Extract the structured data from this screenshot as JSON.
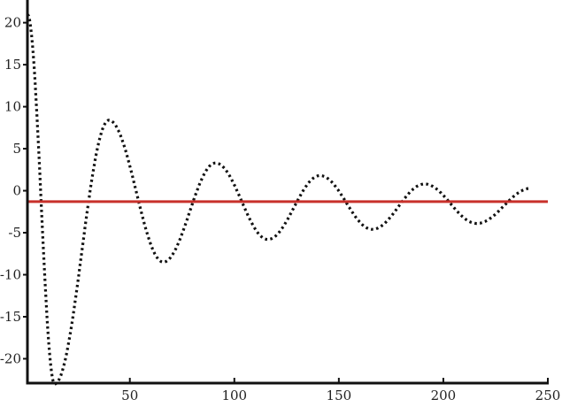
{
  "chart_data": {
    "type": "line",
    "title": "",
    "xlabel": "",
    "ylabel": "",
    "xlim": [
      1,
      250
    ],
    "ylim": [
      -22.9,
      22.7
    ],
    "xticks": [
      50,
      100,
      150,
      200,
      250
    ],
    "yticks": [
      -20,
      -15,
      -10,
      -5,
      0,
      5,
      10,
      15,
      20
    ],
    "grid": false,
    "series": [
      {
        "style": "dotted",
        "color": "#111111",
        "x": [
          1,
          14,
          40,
          66,
          91,
          116,
          141,
          166,
          191,
          216,
          242
        ],
        "y": [
          21,
          -23,
          8.4,
          -8.5,
          3.3,
          -5.8,
          1.8,
          -4.6,
          0.8,
          -3.9,
          0.3
        ]
      },
      {
        "style": "solid",
        "color": "#c8302a",
        "x": [
          1,
          250
        ],
        "y": [
          -1.3,
          -1.3
        ]
      }
    ]
  }
}
